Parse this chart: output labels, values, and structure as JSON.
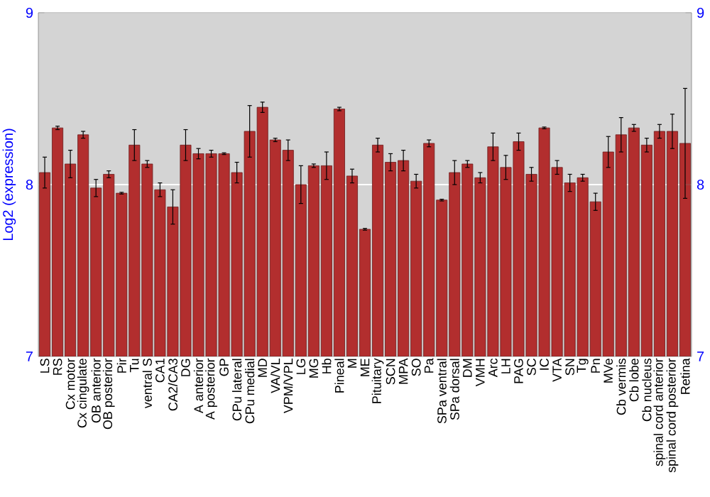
{
  "chart_data": {
    "type": "bar",
    "ylabel": "Log2 (expression)",
    "categories": [
      "LS",
      "RS",
      "Cx motor",
      "Cx cingulate",
      "OB anterior",
      "OB posterior",
      "Pir",
      "Tu",
      "ventral S",
      "CA1",
      "CA2/CA3",
      "DG",
      "A anterior",
      "A posterior",
      "GP",
      "CPu lateral",
      "CPu medial",
      "MD",
      "VA/VL",
      "VPM/VPL",
      "LG",
      "MG",
      "Hb",
      "Pineal",
      "M",
      "ME",
      "Pituitary",
      "SCN",
      "MPA",
      "SO",
      "Pa",
      "SPa ventral",
      "SPa dorsal",
      "DM",
      "VMH",
      "Arc",
      "LH",
      "PAG",
      "SC",
      "IC",
      "VTA",
      "SN",
      "Tg",
      "Pn",
      "MVe",
      "Cb vermis",
      "Cb lobe",
      "Cb nucleus",
      "spinal cord anterior",
      "spinal cord posterior",
      "Retina"
    ],
    "values": [
      8.07,
      8.33,
      8.12,
      8.29,
      7.98,
      8.06,
      7.95,
      8.23,
      8.12,
      7.97,
      7.87,
      8.23,
      8.18,
      8.18,
      8.18,
      8.07,
      8.31,
      8.45,
      8.26,
      8.2,
      8.0,
      8.11,
      8.11,
      8.44,
      8.05,
      7.74,
      8.23,
      8.13,
      8.14,
      8.02,
      8.24,
      7.91,
      8.07,
      8.12,
      8.04,
      8.22,
      8.1,
      8.25,
      8.06,
      8.33,
      8.1,
      8.01,
      8.04,
      7.9,
      8.19,
      8.29,
      8.33,
      8.23,
      8.31,
      8.31,
      8.24
    ],
    "errors": [
      0.09,
      0.01,
      0.08,
      0.02,
      0.05,
      0.02,
      0.005,
      0.09,
      0.02,
      0.04,
      0.1,
      0.09,
      0.03,
      0.02,
      0.005,
      0.06,
      0.15,
      0.03,
      0.01,
      0.06,
      0.11,
      0.01,
      0.08,
      0.01,
      0.04,
      0.005,
      0.04,
      0.05,
      0.06,
      0.04,
      0.02,
      0.005,
      0.07,
      0.02,
      0.03,
      0.08,
      0.07,
      0.05,
      0.04,
      0.005,
      0.04,
      0.05,
      0.02,
      0.05,
      0.09,
      0.1,
      0.02,
      0.04,
      0.04,
      0.1,
      0.32
    ],
    "color": "#b22e2e",
    "ylim": [
      7,
      9
    ],
    "yticks": [
      7,
      8,
      9
    ],
    "y2lim": [
      7,
      9
    ],
    "y2ticks": [
      7,
      8,
      9
    ],
    "grid": "y"
  }
}
